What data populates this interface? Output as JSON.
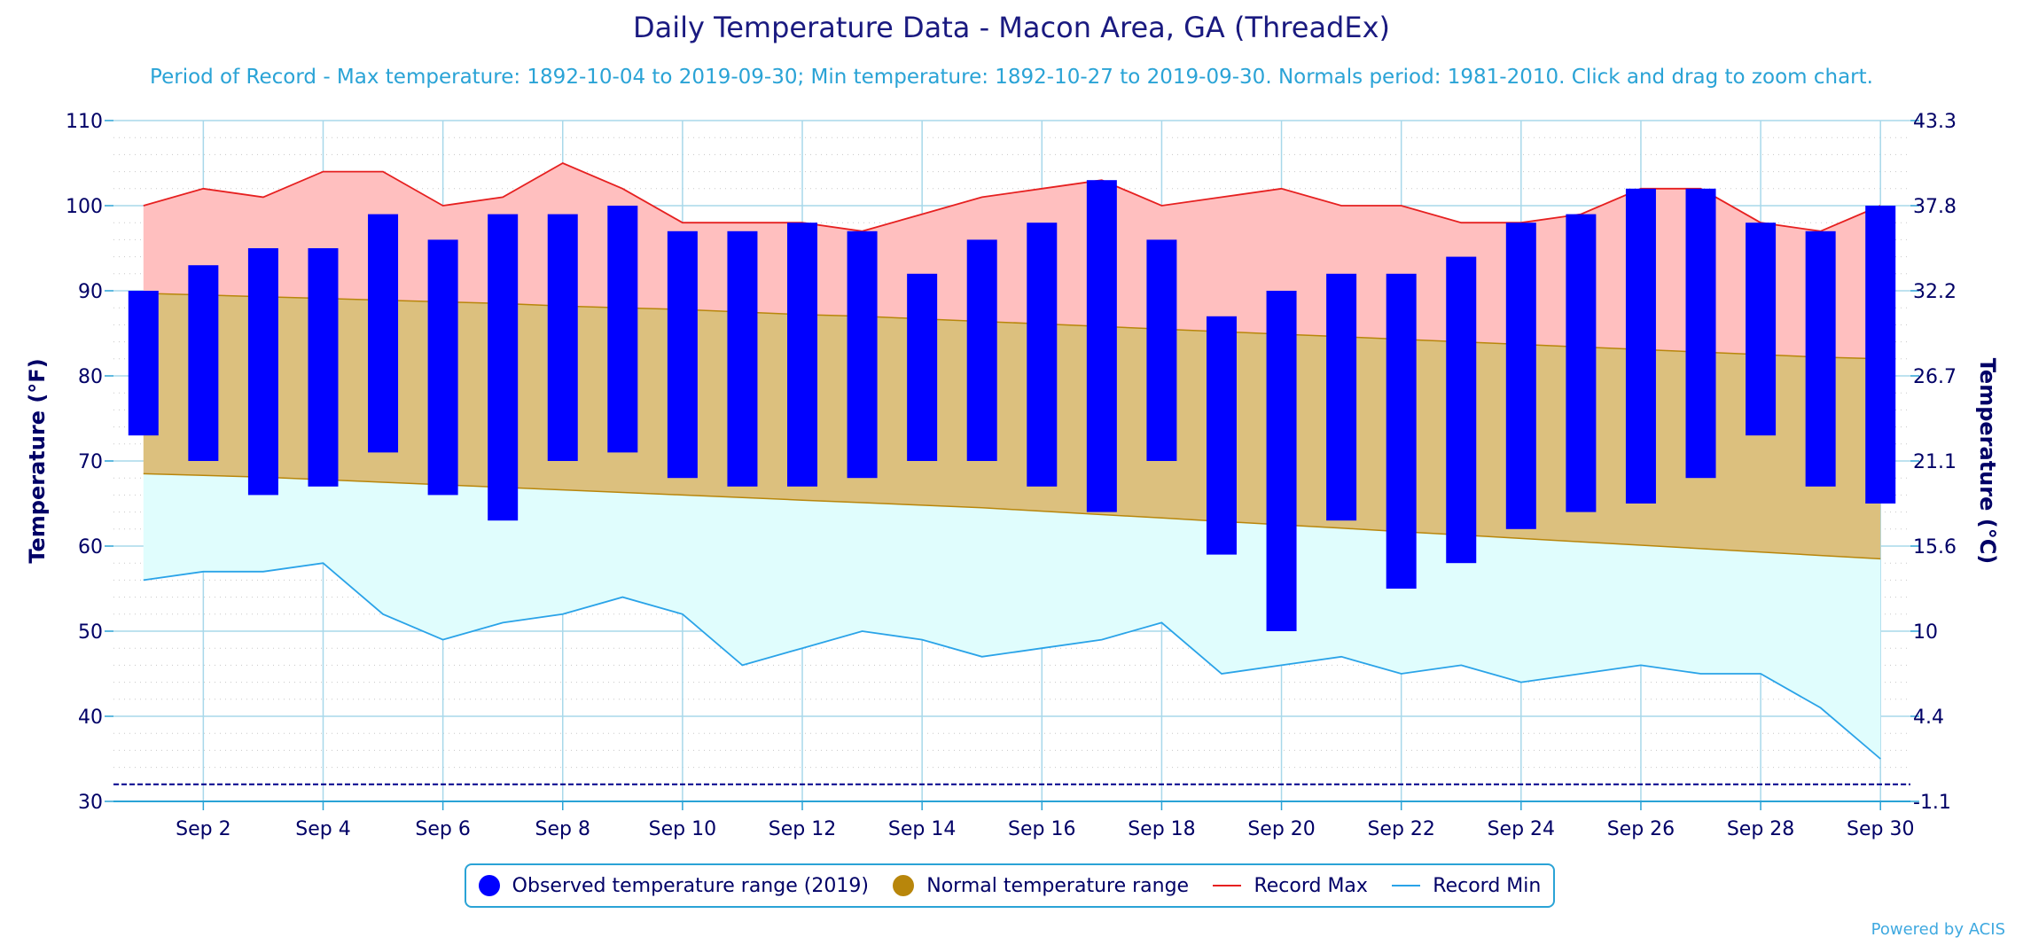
{
  "chart_data": {
    "type": "bar",
    "title": "Daily Temperature Data - Macon Area, GA (ThreadEx)",
    "subtitle": "Period of Record - Max temperature: 1892-10-04 to 2019-09-30; Min temperature: 1892-10-27 to 2019-09-30. Normals period: 1981-2010. Click and drag to zoom chart.",
    "ylabel_left": "Temperature (°F)",
    "ylabel_right": "Temperature (°C)",
    "ylim": [
      30,
      110
    ],
    "yticks_left": [
      "30",
      "40",
      "50",
      "60",
      "70",
      "80",
      "90",
      "100",
      "110"
    ],
    "yticks_right": [
      "-1.1",
      "4.4",
      "10",
      "15.6",
      "21.1",
      "26.7",
      "32.2",
      "37.8",
      "43.3"
    ],
    "xticks": [
      "Sep 2",
      "Sep 4",
      "Sep 6",
      "Sep 8",
      "Sep 10",
      "Sep 12",
      "Sep 14",
      "Sep 16",
      "Sep 18",
      "Sep 20",
      "Sep 22",
      "Sep 24",
      "Sep 26",
      "Sep 28",
      "Sep 30"
    ],
    "days": [
      1,
      2,
      3,
      4,
      5,
      6,
      7,
      8,
      9,
      10,
      11,
      12,
      13,
      14,
      15,
      16,
      17,
      18,
      19,
      20,
      21,
      22,
      23,
      24,
      25,
      26,
      27,
      28,
      29,
      30
    ],
    "reference_line": 32,
    "series": [
      {
        "name": "Observed temperature range (2019)",
        "color": "#0000ff",
        "low": [
          73,
          70,
          66,
          67,
          71,
          66,
          63,
          70,
          71,
          68,
          67,
          67,
          68,
          70,
          70,
          67,
          64,
          70,
          59,
          50,
          63,
          55,
          58,
          62,
          64,
          65,
          68,
          73,
          67,
          65
        ],
        "high": [
          90,
          93,
          95,
          95,
          99,
          96,
          99,
          99,
          100,
          97,
          97,
          98,
          97,
          92,
          96,
          98,
          103,
          96,
          87,
          90,
          92,
          92,
          94,
          98,
          99,
          102,
          102,
          98,
          97,
          100
        ]
      },
      {
        "name": "Normal temperature range",
        "color": "#b8860b",
        "low": [
          68.5,
          68.3,
          68.1,
          67.8,
          67.5,
          67.2,
          66.9,
          66.6,
          66.3,
          66.0,
          65.7,
          65.4,
          65.1,
          64.8,
          64.5,
          64.1,
          63.7,
          63.3,
          62.9,
          62.5,
          62.1,
          61.7,
          61.3,
          60.9,
          60.5,
          60.1,
          59.7,
          59.3,
          58.9,
          58.5
        ],
        "high": [
          89.7,
          89.5,
          89.3,
          89.1,
          88.9,
          88.7,
          88.5,
          88.2,
          88.0,
          87.8,
          87.5,
          87.2,
          87.0,
          86.7,
          86.4,
          86.1,
          85.8,
          85.5,
          85.2,
          84.9,
          84.6,
          84.3,
          84.0,
          83.7,
          83.4,
          83.1,
          82.8,
          82.5,
          82.2,
          82.0
        ]
      },
      {
        "name": "Record Max",
        "color": "#e62020",
        "values": [
          100,
          102,
          101,
          104,
          104,
          100,
          101,
          105,
          102,
          98,
          98,
          98,
          97,
          99,
          101,
          102,
          103,
          100,
          101,
          102,
          100,
          100,
          98,
          98,
          99,
          102,
          102,
          98,
          97,
          100
        ]
      },
      {
        "name": "Record Min",
        "color": "#2aa3e8",
        "values": [
          56,
          57,
          57,
          58,
          52,
          49,
          51,
          52,
          54,
          52,
          46,
          48,
          50,
          49,
          47,
          48,
          49,
          51,
          45,
          46,
          47,
          45,
          46,
          44,
          45,
          46,
          45,
          45,
          41,
          35
        ]
      }
    ]
  },
  "credits": "Powered by ACIS"
}
